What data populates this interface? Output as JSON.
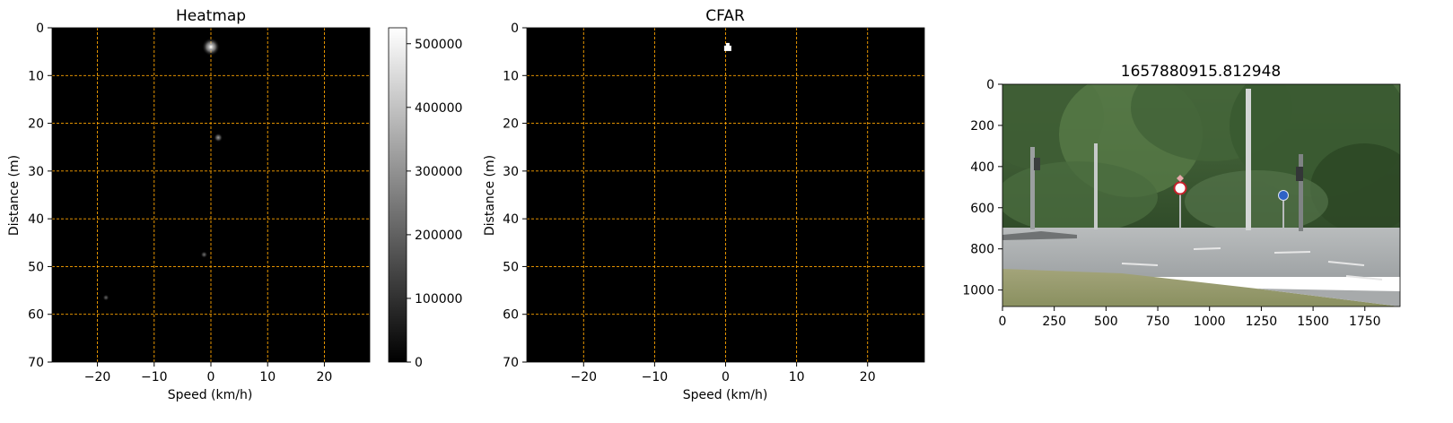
{
  "chart_data": [
    {
      "type": "heatmap",
      "title": "Heatmap",
      "xlabel": "Speed (km/h)",
      "ylabel": "Distance (m)",
      "xlim": [
        -28,
        28
      ],
      "ylim": [
        70,
        0
      ],
      "xticks": [
        -20,
        -10,
        0,
        10,
        20
      ],
      "xtick_labels": [
        "−20",
        "−10",
        "0",
        "10",
        "20"
      ],
      "yticks": [
        0,
        10,
        20,
        30,
        40,
        50,
        60,
        70
      ],
      "ytick_labels": [
        "0",
        "10",
        "20",
        "30",
        "40",
        "50",
        "60",
        "70"
      ],
      "grid": true,
      "grid_color": "#ffa500",
      "background_color": "#000000",
      "colormap": "gray",
      "colorbar": {
        "min": 0,
        "max": 525000,
        "ticks": [
          0,
          100000,
          200000,
          300000,
          400000,
          500000
        ],
        "tick_labels": [
          "0",
          "100000",
          "200000",
          "300000",
          "400000",
          "500000"
        ]
      },
      "hotspots": [
        {
          "speed": 0,
          "distance": 4,
          "intensity": 525000
        },
        {
          "speed": 1.3,
          "distance": 23,
          "intensity": 150000
        },
        {
          "speed": -1.2,
          "distance": 47.5,
          "intensity": 60000
        },
        {
          "speed": -18.5,
          "distance": 56.5,
          "intensity": 40000
        }
      ]
    },
    {
      "type": "heatmap",
      "title": "CFAR",
      "xlabel": "Speed (km/h)",
      "ylabel": "Distance (m)",
      "xlim": [
        -28,
        28
      ],
      "ylim": [
        70,
        0
      ],
      "xticks": [
        -20,
        -10,
        0,
        10,
        20
      ],
      "xtick_labels": [
        "−20",
        "−10",
        "0",
        "10",
        "20"
      ],
      "yticks": [
        0,
        10,
        20,
        30,
        40,
        50,
        60,
        70
      ],
      "ytick_labels": [
        "0",
        "10",
        "20",
        "30",
        "40",
        "50",
        "60",
        "70"
      ],
      "grid": true,
      "grid_color": "#ffa500",
      "background_color": "#000000",
      "detections": [
        {
          "speed": 0.3,
          "distance": 4.3
        }
      ]
    },
    {
      "type": "image",
      "title": "1657880915.812948",
      "xlim": [
        0,
        1920
      ],
      "ylim": [
        1080,
        0
      ],
      "xticks": [
        0,
        250,
        500,
        750,
        1000,
        1250,
        1500,
        1750
      ],
      "xtick_labels": [
        "0",
        "250",
        "500",
        "750",
        "1000",
        "1250",
        "1500",
        "1750"
      ],
      "yticks": [
        0,
        200,
        400,
        600,
        800,
        1000
      ],
      "ytick_labels": [
        "0",
        "200",
        "400",
        "600",
        "800",
        "1000"
      ],
      "image_description_colors": {
        "trees": "#3b5a30",
        "road": "#a8acad",
        "grass": "#9c9e74"
      }
    }
  ]
}
